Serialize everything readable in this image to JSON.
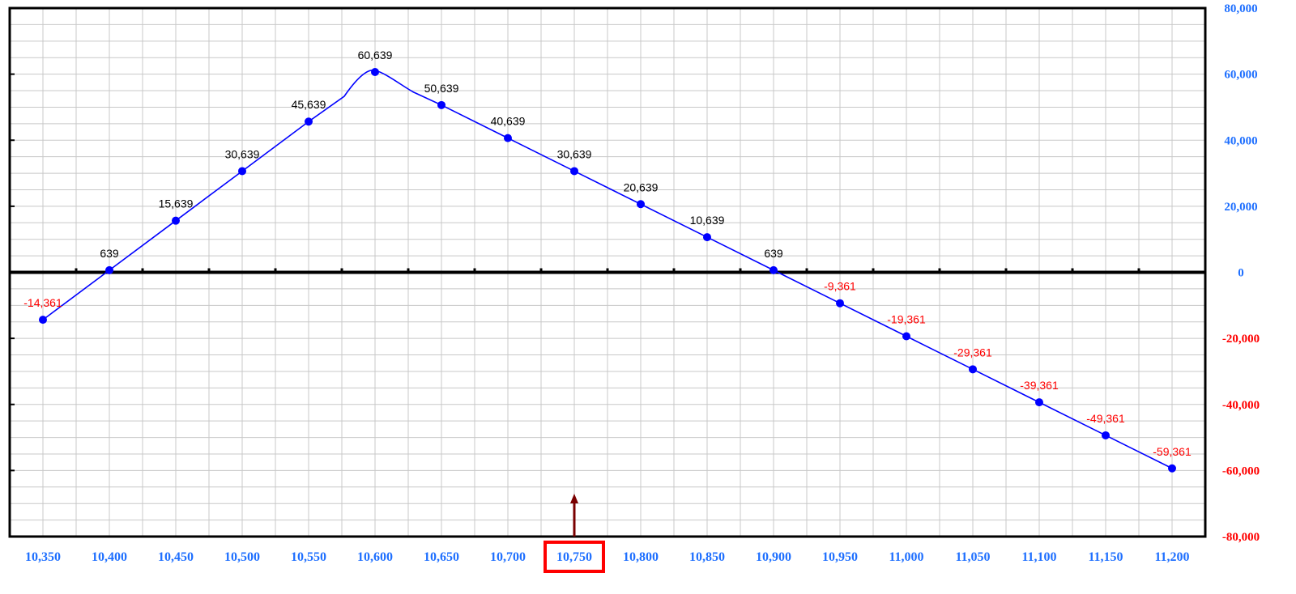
{
  "chart_data": {
    "type": "line",
    "title": "",
    "xlabel": "",
    "ylabel": "",
    "x": [
      10350,
      10400,
      10450,
      10500,
      10550,
      10600,
      10650,
      10700,
      10750,
      10800,
      10850,
      10900,
      10950,
      11000,
      11050,
      11100,
      11150,
      11200
    ],
    "y": [
      -14361,
      639,
      15639,
      30639,
      45639,
      60639,
      50639,
      40639,
      30639,
      20639,
      10639,
      639,
      -9361,
      -19361,
      -29361,
      -39361,
      -49361,
      -59361
    ],
    "data_labels": [
      "-14,361",
      "639",
      "15,639",
      "30,639",
      "45,639",
      "60,639",
      "50,639",
      "40,639",
      "30,639",
      "20,639",
      "10,639",
      "639",
      "-9,361",
      "-19,361",
      "-29,361",
      "-39,361",
      "-49,361",
      "-59,361"
    ],
    "x_tick_labels": [
      "10,350",
      "10,400",
      "10,450",
      "10,500",
      "10,550",
      "10,600",
      "10,650",
      "10,700",
      "10,750",
      "10,800",
      "10,850",
      "10,900",
      "10,950",
      "11,000",
      "11,050",
      "11,100",
      "11,150",
      "11,200"
    ],
    "y_ticks": [
      80000,
      60000,
      40000,
      20000,
      0,
      -20000,
      -40000,
      -60000,
      -80000
    ],
    "y_tick_labels": [
      "80,000",
      "60,000",
      "40,000",
      "20,000",
      "0",
      "-20,000",
      "-40,000",
      "-60,000",
      "-80,000"
    ],
    "ylim": [
      -80000,
      80000
    ],
    "xlim": [
      10325,
      11225
    ],
    "y_axis_side": "right",
    "grid": true,
    "highlighted_x": 10750,
    "colors": {
      "line": "#0000ff",
      "marker": "#0000ff",
      "positive_label": "#000000",
      "negative_label": "#ff0000",
      "positive_tick": "#1e6fff",
      "negative_tick": "#ff0000",
      "grid": "#c8c8c8",
      "axis": "#000000",
      "highlight_box": "#ff0000",
      "arrow": "#7a0000"
    }
  }
}
